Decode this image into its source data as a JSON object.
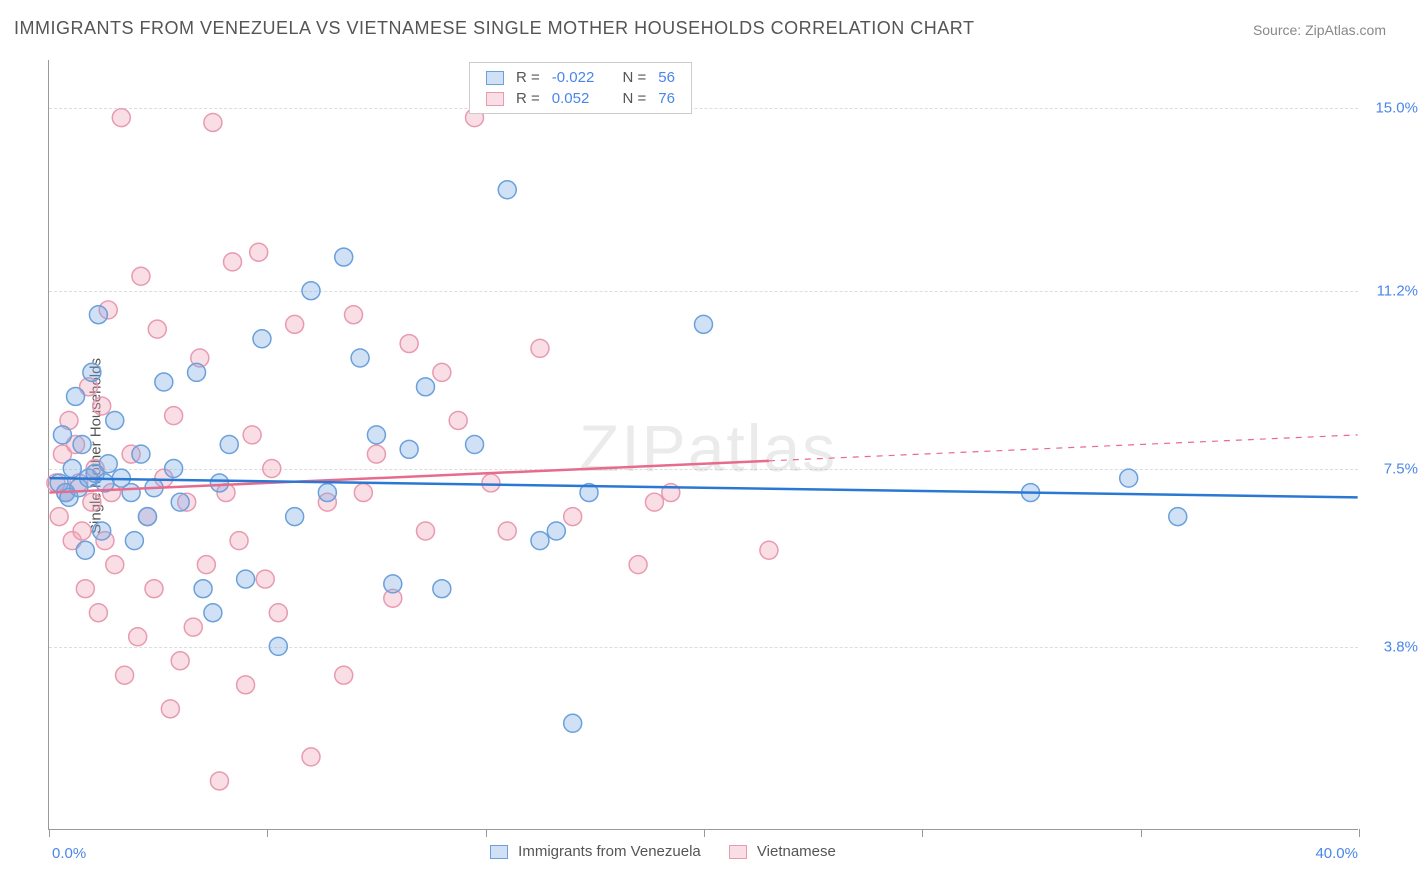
{
  "title": "IMMIGRANTS FROM VENEZUELA VS VIETNAMESE SINGLE MOTHER HOUSEHOLDS CORRELATION CHART",
  "source": "Source: ZipAtlas.com",
  "y_axis_label": "Single Mother Households",
  "watermark_a": "ZIP",
  "watermark_b": "atlas",
  "chart": {
    "type": "scatter",
    "xlim": [
      0,
      40
    ],
    "ylim": [
      0,
      16
    ],
    "y_ticks": [
      3.8,
      7.5,
      11.2,
      15.0
    ],
    "y_tick_labels": [
      "3.8%",
      "7.5%",
      "11.2%",
      "15.0%"
    ],
    "x_ticks": [
      0,
      6.67,
      13.33,
      20,
      26.67,
      33.33,
      40
    ],
    "x_min_label": "0.0%",
    "x_max_label": "40.0%",
    "grid_color": "#dddddd",
    "axis_color": "#999999",
    "background_color": "#ffffff",
    "marker_radius": 9,
    "marker_stroke_width": 1.5,
    "trend_line_width": 2.5,
    "series": [
      {
        "name": "Immigrants from Venezuela",
        "fill": "rgba(120,170,230,0.35)",
        "stroke": "#6aa0db",
        "line_color": "#2b78d4",
        "R": "-0.022",
        "N": "56",
        "trend": {
          "x1": 0,
          "y1": 7.3,
          "x2": 40,
          "y2": 6.9,
          "dash_start_x": null
        },
        "points": [
          [
            0.3,
            7.2
          ],
          [
            0.4,
            8.2
          ],
          [
            0.5,
            7.0
          ],
          [
            0.6,
            6.9
          ],
          [
            0.7,
            7.5
          ],
          [
            0.8,
            9.0
          ],
          [
            0.9,
            7.1
          ],
          [
            1.0,
            8.0
          ],
          [
            1.1,
            5.8
          ],
          [
            1.2,
            7.3
          ],
          [
            1.3,
            9.5
          ],
          [
            1.4,
            7.4
          ],
          [
            1.5,
            10.7
          ],
          [
            1.6,
            6.2
          ],
          [
            1.7,
            7.2
          ],
          [
            1.8,
            7.6
          ],
          [
            2.0,
            8.5
          ],
          [
            2.2,
            7.3
          ],
          [
            2.5,
            7.0
          ],
          [
            2.6,
            6.0
          ],
          [
            2.8,
            7.8
          ],
          [
            3.0,
            6.5
          ],
          [
            3.2,
            7.1
          ],
          [
            3.5,
            9.3
          ],
          [
            3.8,
            7.5
          ],
          [
            4.0,
            6.8
          ],
          [
            4.5,
            9.5
          ],
          [
            4.7,
            5.0
          ],
          [
            5.0,
            4.5
          ],
          [
            5.2,
            7.2
          ],
          [
            5.5,
            8.0
          ],
          [
            6.0,
            5.2
          ],
          [
            6.5,
            10.2
          ],
          [
            7.0,
            3.8
          ],
          [
            7.5,
            6.5
          ],
          [
            8.0,
            11.2
          ],
          [
            8.5,
            7.0
          ],
          [
            9.0,
            11.9
          ],
          [
            9.5,
            9.8
          ],
          [
            10.0,
            8.2
          ],
          [
            10.5,
            5.1
          ],
          [
            11.5,
            9.2
          ],
          [
            11.0,
            7.9
          ],
          [
            12.0,
            5.0
          ],
          [
            13.0,
            8.0
          ],
          [
            14.0,
            13.3
          ],
          [
            15.0,
            6.0
          ],
          [
            15.5,
            6.2
          ],
          [
            16.0,
            2.2
          ],
          [
            16.5,
            7.0
          ],
          [
            20.0,
            10.5
          ],
          [
            30.0,
            7.0
          ],
          [
            33.0,
            7.3
          ],
          [
            34.5,
            6.5
          ]
        ]
      },
      {
        "name": "Vietnamese",
        "fill": "rgba(240,160,180,0.35)",
        "stroke": "#e89ab0",
        "line_color": "#e86b8e",
        "R": "0.052",
        "N": "76",
        "trend": {
          "x1": 0,
          "y1": 7.0,
          "x2": 40,
          "y2": 8.2,
          "dash_start_x": 22
        },
        "points": [
          [
            0.2,
            7.2
          ],
          [
            0.3,
            6.5
          ],
          [
            0.4,
            7.8
          ],
          [
            0.5,
            7.0
          ],
          [
            0.6,
            8.5
          ],
          [
            0.7,
            6.0
          ],
          [
            0.8,
            8.0
          ],
          [
            0.9,
            7.2
          ],
          [
            1.0,
            6.2
          ],
          [
            1.1,
            5.0
          ],
          [
            1.2,
            9.2
          ],
          [
            1.3,
            6.8
          ],
          [
            1.4,
            7.5
          ],
          [
            1.5,
            4.5
          ],
          [
            1.6,
            8.8
          ],
          [
            1.7,
            6.0
          ],
          [
            1.8,
            10.8
          ],
          [
            1.9,
            7.0
          ],
          [
            2.0,
            5.5
          ],
          [
            2.2,
            14.8
          ],
          [
            2.3,
            3.2
          ],
          [
            2.5,
            7.8
          ],
          [
            2.7,
            4.0
          ],
          [
            2.8,
            11.5
          ],
          [
            3.0,
            6.5
          ],
          [
            3.2,
            5.0
          ],
          [
            3.3,
            10.4
          ],
          [
            3.5,
            7.3
          ],
          [
            3.7,
            2.5
          ],
          [
            3.8,
            8.6
          ],
          [
            4.0,
            3.5
          ],
          [
            4.2,
            6.8
          ],
          [
            4.4,
            4.2
          ],
          [
            4.6,
            9.8
          ],
          [
            4.8,
            5.5
          ],
          [
            5.0,
            14.7
          ],
          [
            5.2,
            1.0
          ],
          [
            5.4,
            7.0
          ],
          [
            5.6,
            11.8
          ],
          [
            5.8,
            6.0
          ],
          [
            6.0,
            3.0
          ],
          [
            6.2,
            8.2
          ],
          [
            6.4,
            12.0
          ],
          [
            6.6,
            5.2
          ],
          [
            6.8,
            7.5
          ],
          [
            7.0,
            4.5
          ],
          [
            7.5,
            10.5
          ],
          [
            8.0,
            1.5
          ],
          [
            8.5,
            6.8
          ],
          [
            9.0,
            3.2
          ],
          [
            9.3,
            10.7
          ],
          [
            9.6,
            7.0
          ],
          [
            10.0,
            7.8
          ],
          [
            10.5,
            4.8
          ],
          [
            11.0,
            10.1
          ],
          [
            11.5,
            6.2
          ],
          [
            12.0,
            9.5
          ],
          [
            12.5,
            8.5
          ],
          [
            13.0,
            14.8
          ],
          [
            13.5,
            7.2
          ],
          [
            14.0,
            6.2
          ],
          [
            15.0,
            10.0
          ],
          [
            16.0,
            6.5
          ],
          [
            18.0,
            5.5
          ],
          [
            18.5,
            6.8
          ],
          [
            19.0,
            7.0
          ],
          [
            22.0,
            5.8
          ]
        ]
      }
    ]
  },
  "legend_top": {
    "R_label": "R =",
    "N_label": "N ="
  },
  "legend_bottom": {
    "items": [
      "Immigrants from Venezuela",
      "Vietnamese"
    ]
  }
}
